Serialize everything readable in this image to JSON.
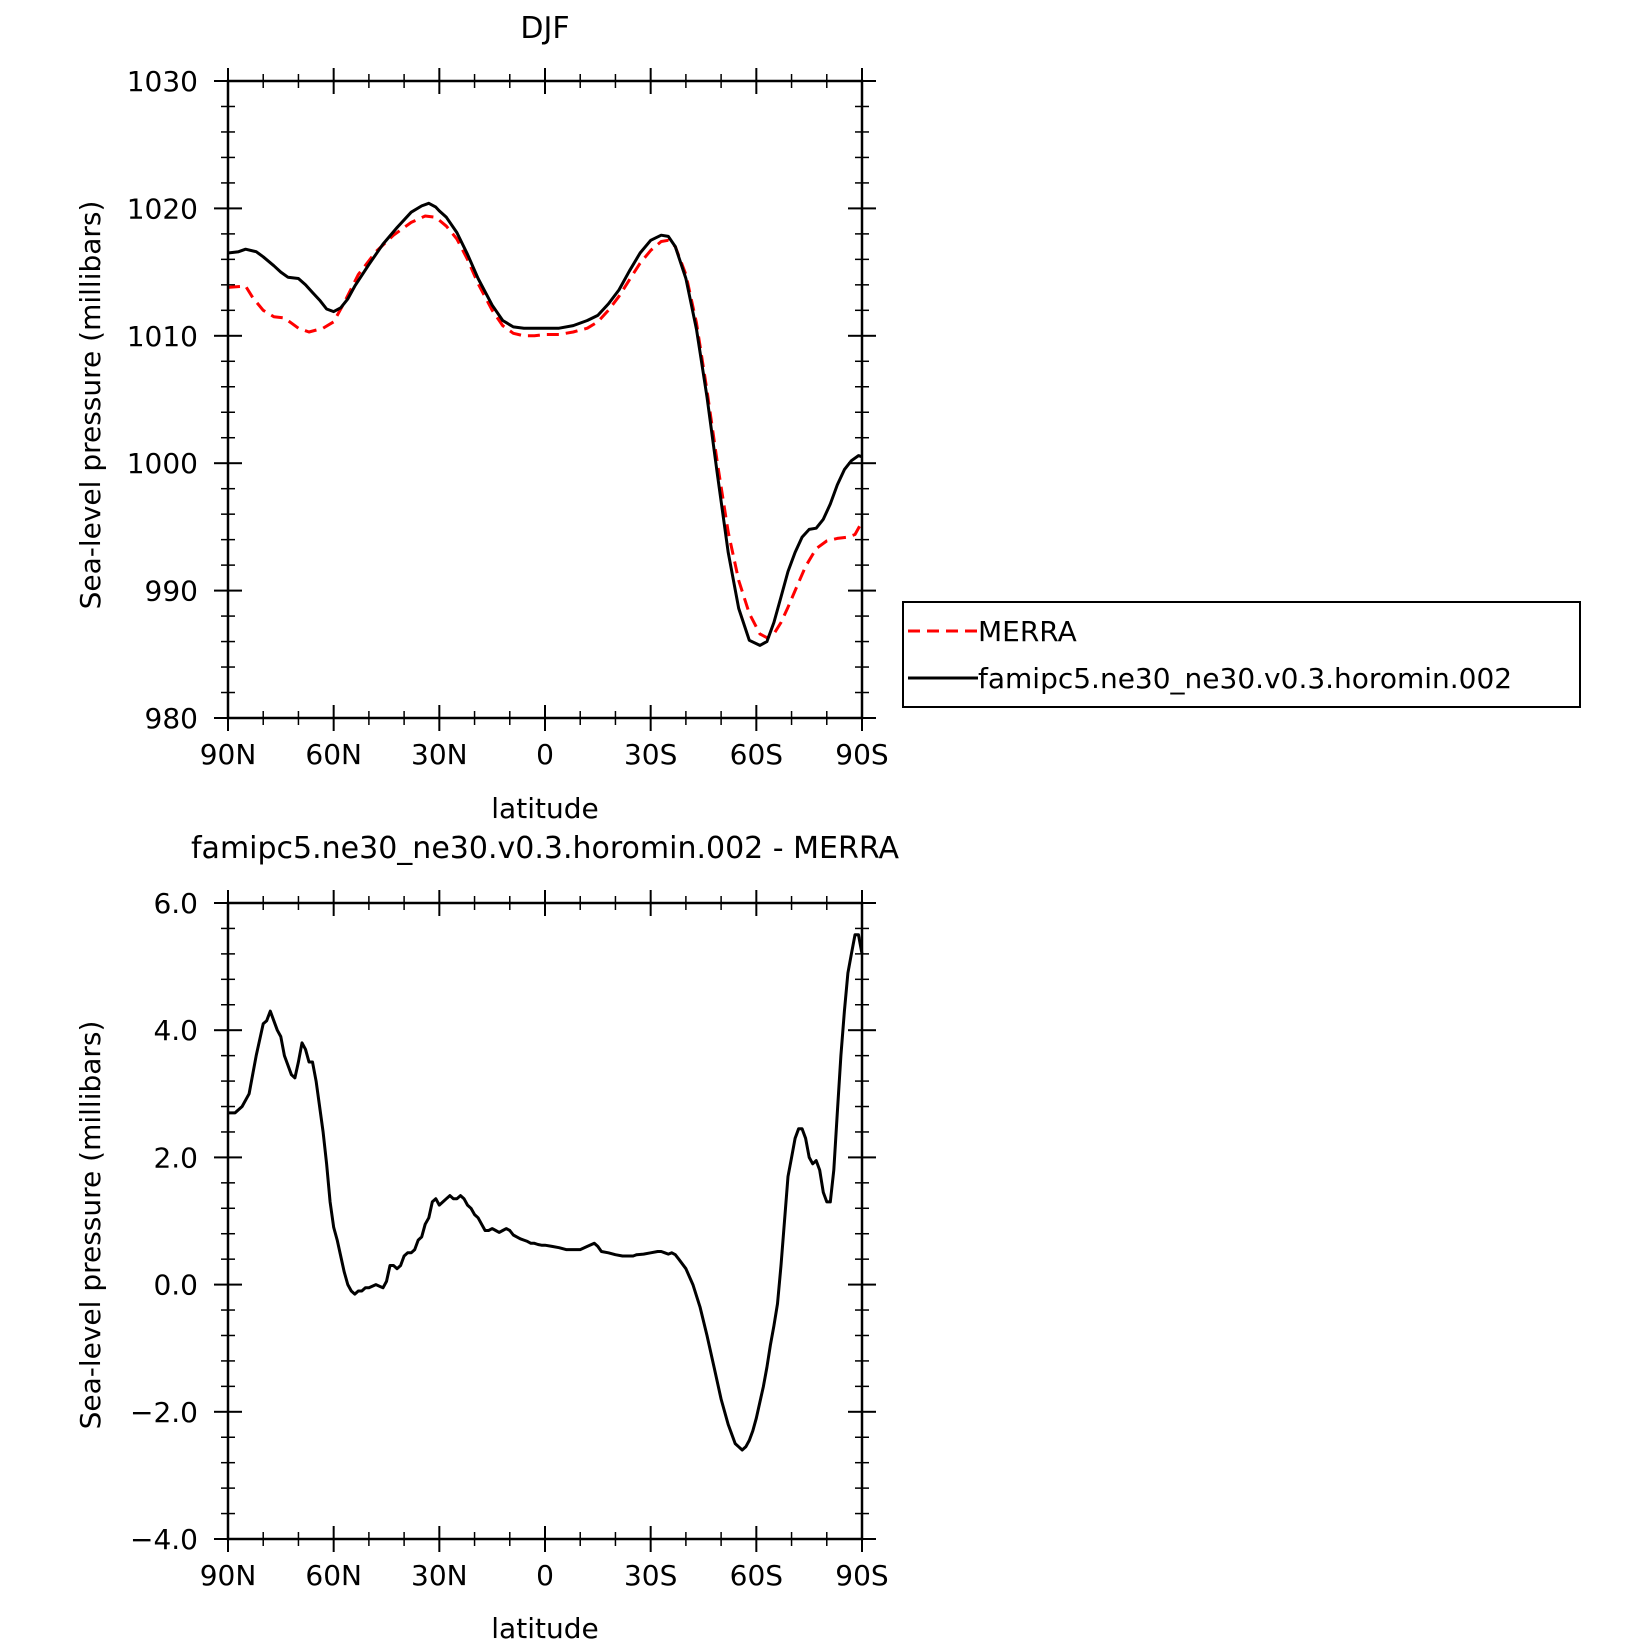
{
  "chart_data": [
    {
      "type": "line",
      "title": "DJF",
      "xlabel": "latitude",
      "ylabel": "Sea-level pressure (millibars)",
      "xlim": [
        90,
        -90
      ],
      "ylim": [
        980,
        1030
      ],
      "x_ticks": [
        {
          "value": 90,
          "label": "90N"
        },
        {
          "value": 60,
          "label": "60N"
        },
        {
          "value": 30,
          "label": "30N"
        },
        {
          "value": 0,
          "label": "0"
        },
        {
          "value": -30,
          "label": "30S"
        },
        {
          "value": -60,
          "label": "60S"
        },
        {
          "value": -90,
          "label": "90S"
        }
      ],
      "y_ticks": [
        {
          "value": 980,
          "label": "980"
        },
        {
          "value": 990,
          "label": "990"
        },
        {
          "value": 1000,
          "label": "1000"
        },
        {
          "value": 1010,
          "label": "1010"
        },
        {
          "value": 1020,
          "label": "1020"
        },
        {
          "value": 1030,
          "label": "1030"
        }
      ],
      "legend_position": "right",
      "series": [
        {
          "name": "MERRA",
          "color": "#ff0000",
          "dash": true,
          "x": [
            90,
            85,
            83,
            80,
            77,
            74,
            72,
            70,
            67,
            63,
            60,
            57,
            53,
            48,
            43,
            38,
            34,
            31,
            28,
            25,
            22,
            19,
            15,
            12,
            9,
            6,
            3,
            0,
            -4,
            -8,
            -12,
            -15,
            -18,
            -21,
            -24,
            -27,
            -30,
            -33,
            -35,
            -37,
            -40,
            -43,
            -46,
            -49,
            -52,
            -55,
            -58,
            -61,
            -63,
            -65,
            -67,
            -69,
            -71,
            -74,
            -77,
            -80,
            -83,
            -86,
            -88,
            -90
          ],
          "y": [
            1013.8,
            1013.9,
            1013.0,
            1012.0,
            1011.5,
            1011.4,
            1011.0,
            1010.6,
            1010.3,
            1010.6,
            1011.1,
            1012.6,
            1014.8,
            1016.6,
            1017.9,
            1018.9,
            1019.4,
            1019.3,
            1018.6,
            1017.6,
            1016.0,
            1014.1,
            1012.0,
            1010.8,
            1010.2,
            1010.0,
            1010.0,
            1010.1,
            1010.1,
            1010.3,
            1010.6,
            1011.1,
            1012.0,
            1013.1,
            1014.4,
            1015.7,
            1016.7,
            1017.4,
            1017.5,
            1017.0,
            1014.8,
            1011.0,
            1005.7,
            999.9,
            994.6,
            990.8,
            988.2,
            986.6,
            986.3,
            986.6,
            987.5,
            988.7,
            990.0,
            991.9,
            993.3,
            993.9,
            994.1,
            994.2,
            994.4,
            995.4
          ]
        },
        {
          "name": "famipc5.ne30_ne30.v0.3.horomin.002",
          "color": "#000000",
          "dash": false,
          "x": [
            90,
            87,
            85,
            82,
            80,
            77,
            75,
            73,
            70,
            68,
            66,
            64,
            62,
            60,
            58,
            56,
            54,
            50,
            46,
            42,
            38,
            35,
            33,
            31,
            30,
            28,
            25,
            22,
            19,
            15,
            12,
            9,
            6,
            3,
            0,
            -4,
            -8,
            -12,
            -15,
            -18,
            -21,
            -24,
            -27,
            -30,
            -33,
            -35,
            -37,
            -40,
            -43,
            -46,
            -49,
            -52,
            -55,
            -58,
            -61,
            -63,
            -65,
            -67,
            -69,
            -71,
            -73,
            -75,
            -77,
            -79,
            -81,
            -83,
            -85,
            -87,
            -89,
            -90
          ],
          "y": [
            1016.5,
            1016.6,
            1016.8,
            1016.6,
            1016.2,
            1015.5,
            1015.0,
            1014.6,
            1014.5,
            1014.0,
            1013.4,
            1012.8,
            1012.1,
            1011.9,
            1012.2,
            1012.9,
            1013.9,
            1015.6,
            1017.2,
            1018.5,
            1019.7,
            1020.2,
            1020.4,
            1020.1,
            1019.8,
            1019.3,
            1018.1,
            1016.4,
            1014.5,
            1012.4,
            1011.2,
            1010.7,
            1010.6,
            1010.6,
            1010.6,
            1010.6,
            1010.8,
            1011.2,
            1011.6,
            1012.5,
            1013.6,
            1015.1,
            1016.5,
            1017.5,
            1017.9,
            1017.8,
            1017.0,
            1014.5,
            1010.5,
            1005.2,
            999.0,
            993.0,
            988.6,
            986.1,
            985.7,
            986.0,
            987.5,
            989.5,
            991.5,
            993.0,
            994.2,
            994.8,
            994.9,
            995.6,
            996.8,
            998.3,
            999.5,
            1000.2,
            1000.6,
            1000.5
          ]
        }
      ]
    },
    {
      "type": "line",
      "title": "famipc5.ne30_ne30.v0.3.horomin.002 - MERRA",
      "xlabel": "latitude",
      "ylabel": "Sea-level pressure (millibars)",
      "xlim": [
        90,
        -90
      ],
      "ylim": [
        -4,
        6
      ],
      "x_ticks": [
        {
          "value": 90,
          "label": "90N"
        },
        {
          "value": 60,
          "label": "60N"
        },
        {
          "value": 30,
          "label": "30N"
        },
        {
          "value": 0,
          "label": "0"
        },
        {
          "value": -30,
          "label": "30S"
        },
        {
          "value": -60,
          "label": "60S"
        },
        {
          "value": -90,
          "label": "90S"
        }
      ],
      "y_ticks": [
        {
          "value": -4,
          "label": "-4.0"
        },
        {
          "value": -2,
          "label": "-2.0"
        },
        {
          "value": 0,
          "label": "0.0"
        },
        {
          "value": 2,
          "label": "2.0"
        },
        {
          "value": 4,
          "label": "4.0"
        },
        {
          "value": 6,
          "label": "6.0"
        }
      ],
      "series": [
        {
          "name": "",
          "color": "#000000",
          "dash": false,
          "x": [
            90,
            88,
            86,
            84,
            82,
            80,
            79,
            78,
            77,
            76,
            75,
            74,
            72,
            71,
            70,
            69,
            68,
            67,
            66,
            65,
            64,
            63,
            62,
            61,
            60,
            59,
            58,
            57,
            56,
            55,
            54,
            53,
            52,
            51,
            50,
            48,
            46,
            45,
            44,
            43,
            42,
            41,
            40,
            39,
            38,
            37,
            36,
            35,
            34,
            33,
            32,
            31,
            30,
            29,
            28,
            27,
            26,
            25,
            24,
            23,
            22,
            21,
            20,
            19,
            18,
            17,
            16,
            15,
            14,
            13,
            12,
            11,
            10,
            9,
            8,
            7,
            6,
            5,
            4,
            3,
            2,
            1,
            0,
            -2,
            -4,
            -6,
            -8,
            -10,
            -12,
            -14,
            -15,
            -16,
            -18,
            -20,
            -22,
            -24,
            -25,
            -26,
            -28,
            -30,
            -32,
            -33,
            -34,
            -35,
            -36,
            -37,
            -38,
            -40,
            -42,
            -44,
            -46,
            -48,
            -50,
            -52,
            -54,
            -55,
            -56,
            -57,
            -58,
            -59,
            -60,
            -62,
            -63,
            -64,
            -65,
            -66,
            -67,
            -68,
            -69,
            -70,
            -71,
            -72,
            -73,
            -74,
            -75,
            -76,
            -77,
            -78,
            -79,
            -80,
            -81,
            -82,
            -83,
            -84,
            -85,
            -86,
            -87,
            -88,
            -89,
            -90
          ],
          "y": [
            2.7,
            2.7,
            2.8,
            3.0,
            3.6,
            4.1,
            4.15,
            4.3,
            4.15,
            4.0,
            3.9,
            3.6,
            3.3,
            3.25,
            3.5,
            3.8,
            3.7,
            3.5,
            3.5,
            3.2,
            2.8,
            2.4,
            1.9,
            1.3,
            0.9,
            0.7,
            0.45,
            0.2,
            0.0,
            -0.1,
            -0.15,
            -0.1,
            -0.1,
            -0.05,
            -0.05,
            0.0,
            -0.05,
            0.05,
            0.3,
            0.3,
            0.25,
            0.3,
            0.45,
            0.5,
            0.5,
            0.55,
            0.7,
            0.75,
            0.95,
            1.05,
            1.3,
            1.35,
            1.25,
            1.3,
            1.35,
            1.4,
            1.35,
            1.35,
            1.4,
            1.35,
            1.25,
            1.2,
            1.1,
            1.05,
            0.95,
            0.85,
            0.85,
            0.88,
            0.85,
            0.82,
            0.85,
            0.88,
            0.85,
            0.78,
            0.75,
            0.72,
            0.7,
            0.68,
            0.65,
            0.65,
            0.63,
            0.62,
            0.62,
            0.6,
            0.58,
            0.55,
            0.55,
            0.55,
            0.6,
            0.65,
            0.6,
            0.52,
            0.5,
            0.47,
            0.45,
            0.45,
            0.45,
            0.47,
            0.48,
            0.5,
            0.52,
            0.52,
            0.5,
            0.48,
            0.5,
            0.47,
            0.4,
            0.25,
            0.0,
            -0.35,
            -0.8,
            -1.3,
            -1.8,
            -2.2,
            -2.5,
            -2.55,
            -2.6,
            -2.55,
            -2.45,
            -2.3,
            -2.1,
            -1.6,
            -1.3,
            -0.95,
            -0.65,
            -0.3,
            0.3,
            1.0,
            1.7,
            2.0,
            2.3,
            2.45,
            2.45,
            2.3,
            2.0,
            1.9,
            1.95,
            1.8,
            1.45,
            1.3,
            1.3,
            1.8,
            2.7,
            3.6,
            4.3,
            4.9,
            5.2,
            5.5,
            5.5,
            5.2
          ]
        }
      ]
    }
  ],
  "legend": {
    "items": [
      {
        "label": "MERRA",
        "color": "#ff0000",
        "dash": true
      },
      {
        "label": "famipc5.ne30_ne30.v0.3.horomin.002",
        "color": "#000000",
        "dash": false
      }
    ]
  }
}
